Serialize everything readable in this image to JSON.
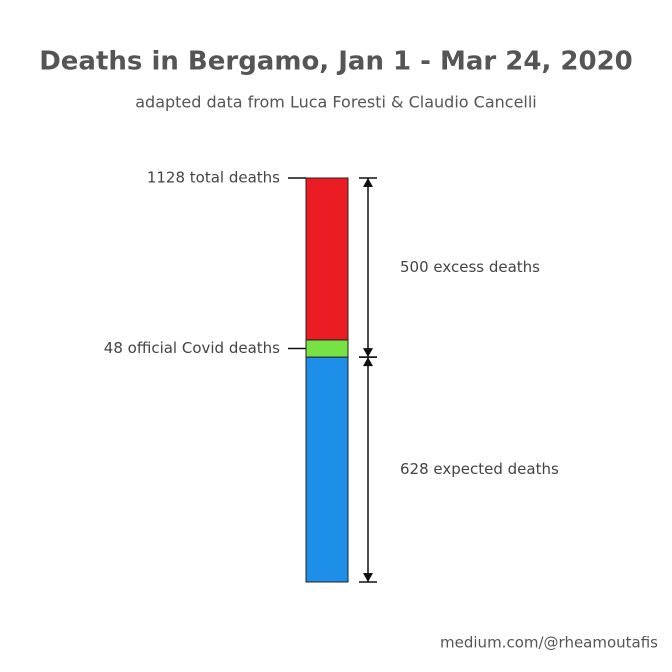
{
  "chart_data": {
    "type": "stacked_bar",
    "title": "Deaths in Bergamo, Jan 1 - Mar 24, 2020",
    "subtitle": "adapted data from Luca Foresti & Claudio Cancelli",
    "ylim": [
      0,
      1128
    ],
    "segments": [
      {
        "value": 628,
        "color": "#1e8fe8",
        "label": "628 expected deaths"
      },
      {
        "value": 48,
        "color": "#77e244",
        "label": "48 official Covid deaths"
      },
      {
        "value": 452,
        "color": "#ec1c24"
      }
    ],
    "total": {
      "value": 1128,
      "label": "1128 total deaths"
    },
    "excess": {
      "value": 500,
      "label": "500 excess deaths"
    },
    "credit": "medium.com/@rheamoutafis"
  }
}
